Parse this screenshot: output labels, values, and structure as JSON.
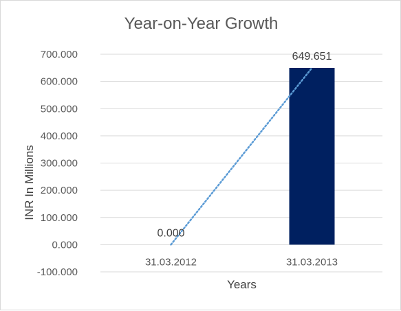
{
  "chart_data": {
    "type": "bar",
    "title": "Year-on-Year Growth",
    "xlabel": "Years",
    "ylabel": "INR In Millions",
    "categories": [
      "31.03.2012",
      "31.03.2013"
    ],
    "values": [
      0.0,
      649.651
    ],
    "data_labels": [
      "0.000",
      "649.651"
    ],
    "ylim": [
      -100,
      700
    ],
    "y_ticks": [
      700,
      600,
      500,
      400,
      300,
      200,
      100,
      0,
      -100
    ],
    "y_tick_labels": [
      "700.000",
      "600.000",
      "500.000",
      "400.000",
      "300.000",
      "200.000",
      "100.000",
      "0.000",
      "-100.000"
    ],
    "trendline": {
      "type": "linear",
      "style": "dotted",
      "color": "#5b9bd5"
    },
    "bar_color": "#002060",
    "grid": true,
    "legend": "none"
  }
}
